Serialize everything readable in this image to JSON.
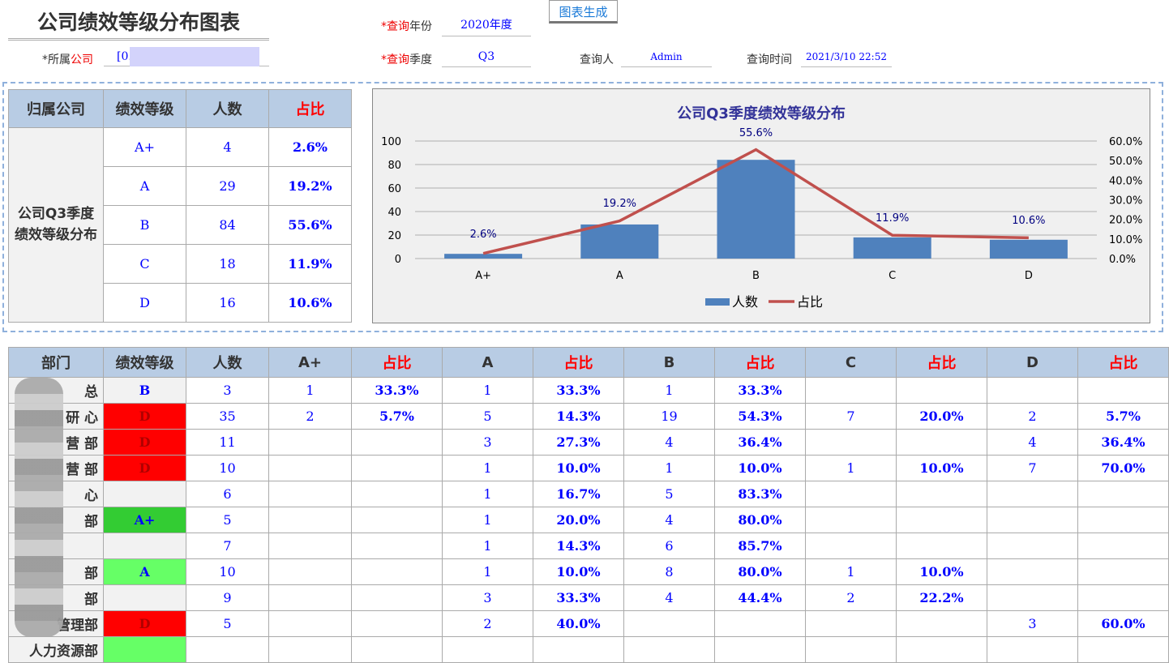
{
  "header": {
    "title": "公司绩效等级分布图表",
    "generate_button": "图表生成",
    "year_label_a": "*查询",
    "year_label_b": "年份",
    "year_value": "2020年度",
    "company_label_a": "*所属",
    "company_label_b": "公司",
    "company_value": "[0.",
    "quarter_label_a": "*查询",
    "quarter_label_b": "季度",
    "quarter_value": "Q3",
    "querier_label": "查询人",
    "querier_value": "Admin",
    "time_label": "查询时间",
    "time_value": "2021/3/10 22:52"
  },
  "summary": {
    "headers": [
      "归属公司",
      "绩效等级",
      "人数",
      "占比"
    ],
    "group": "公司Q3季度绩效等级分布",
    "rows": [
      [
        "A+",
        "4",
        "2.6%"
      ],
      [
        "A",
        "29",
        "19.2%"
      ],
      [
        "B",
        "84",
        "55.6%"
      ],
      [
        "C",
        "18",
        "11.9%"
      ],
      [
        "D",
        "16",
        "10.6%"
      ]
    ]
  },
  "chart_data": {
    "type": "bar+line",
    "title": "公司Q3季度绩效等级分布",
    "categories": [
      "A+",
      "A",
      "B",
      "C",
      "D"
    ],
    "series": [
      {
        "name": "人数",
        "type": "bar",
        "values": [
          4,
          29,
          84,
          18,
          16
        ],
        "color": "#4f81bd"
      },
      {
        "name": "占比",
        "type": "line",
        "values": [
          2.6,
          19.2,
          55.6,
          11.9,
          10.6
        ],
        "color": "#c0504d",
        "labels": [
          "2.6%",
          "19.2%",
          "55.6%",
          "11.9%",
          "10.6%"
        ]
      }
    ],
    "y_left": {
      "ticks": [
        "0",
        "20",
        "40",
        "60",
        "80",
        "100"
      ],
      "range": [
        0,
        100
      ]
    },
    "y_right": {
      "ticks": [
        "0.0%",
        "10.0%",
        "20.0%",
        "30.0%",
        "40.0%",
        "50.0%",
        "60.0%"
      ],
      "range": [
        0,
        60
      ]
    },
    "legend": "bottom",
    "grid": true
  },
  "detail": {
    "headers": [
      "部门",
      "绩效等级",
      "人数",
      "A+",
      "占比",
      "A",
      "占比",
      "B",
      "占比",
      "C",
      "占比",
      "D",
      "占比"
    ],
    "rows": [
      {
        "dept": "总",
        "grade": "B",
        "bg": "#f2f2f2",
        "cells": [
          "3",
          "1",
          "33.3%",
          "1",
          "33.3%",
          "1",
          "33.3%",
          "",
          "",
          "",
          ""
        ]
      },
      {
        "dept": "研  心",
        "grade": "D",
        "bg": "#ff0000",
        "cells": [
          "35",
          "2",
          "5.7%",
          "5",
          "14.3%",
          "19",
          "54.3%",
          "7",
          "20.0%",
          "2",
          "5.7%"
        ]
      },
      {
        "dept": "营  部",
        "grade": "D",
        "bg": "#ff0000",
        "cells": [
          "11",
          "",
          "",
          "3",
          "27.3%",
          "4",
          "36.4%",
          "",
          "",
          "4",
          "36.4%"
        ]
      },
      {
        "dept": "营  部",
        "grade": "D",
        "bg": "#ff0000",
        "cells": [
          "10",
          "",
          "",
          "1",
          "10.0%",
          "1",
          "10.0%",
          "1",
          "10.0%",
          "7",
          "70.0%"
        ]
      },
      {
        "dept": "心",
        "grade": "",
        "bg": "#f2f2f2",
        "cells": [
          "6",
          "",
          "",
          "1",
          "16.7%",
          "5",
          "83.3%",
          "",
          "",
          "",
          ""
        ]
      },
      {
        "dept": "部",
        "grade": "A+",
        "bg": "#33cc33",
        "cells": [
          "5",
          "",
          "",
          "1",
          "20.0%",
          "4",
          "80.0%",
          "",
          "",
          "",
          ""
        ]
      },
      {
        "dept": "",
        "grade": "",
        "bg": "#f2f2f2",
        "cells": [
          "7",
          "",
          "",
          "1",
          "14.3%",
          "6",
          "85.7%",
          "",
          "",
          "",
          ""
        ]
      },
      {
        "dept": "部",
        "grade": "A",
        "bg": "#66ff66",
        "cells": [
          "10",
          "",
          "",
          "1",
          "10.0%",
          "8",
          "80.0%",
          "1",
          "10.0%",
          "",
          ""
        ]
      },
      {
        "dept": "部",
        "grade": "",
        "bg": "#f2f2f2",
        "cells": [
          "9",
          "",
          "",
          "3",
          "33.3%",
          "4",
          "44.4%",
          "2",
          "22.2%",
          "",
          ""
        ]
      },
      {
        "dept": "管理部",
        "grade": "D",
        "bg": "#ff0000",
        "cells": [
          "5",
          "",
          "",
          "2",
          "40.0%",
          "",
          "",
          "",
          "",
          "3",
          "60.0%"
        ]
      },
      {
        "dept": "人力资源部",
        "grade": "",
        "bg": "#66ff66",
        "cells": [
          "",
          "",
          "",
          "",
          "",
          "",
          "",
          "",
          "",
          "",
          ""
        ]
      }
    ]
  }
}
